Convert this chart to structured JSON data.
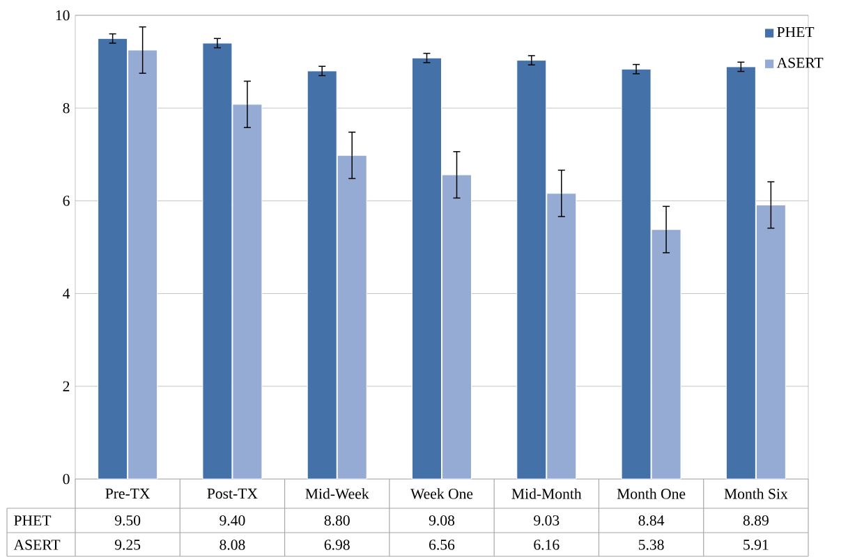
{
  "chart_data": {
    "type": "bar",
    "categories": [
      "Pre-TX",
      "Post-TX",
      "Mid-Week",
      "Week One",
      "Mid-Month",
      "Month One",
      "Month Six"
    ],
    "series": [
      {
        "name": "PHET",
        "color": "#4472a8",
        "values": [
          9.5,
          9.4,
          8.8,
          9.08,
          9.03,
          8.84,
          8.89
        ],
        "errors": [
          0.1,
          0.1,
          0.1,
          0.1,
          0.1,
          0.1,
          0.1
        ],
        "value_labels": [
          "9.50",
          "9.40",
          "8.80",
          "9.08",
          "9.03",
          "8.84",
          "8.89"
        ]
      },
      {
        "name": "ASERT",
        "color": "#95abd3",
        "values": [
          9.25,
          8.08,
          6.98,
          6.56,
          6.16,
          5.38,
          5.91
        ],
        "errors": [
          0.5,
          0.5,
          0.5,
          0.5,
          0.5,
          0.5,
          0.5
        ],
        "value_labels": [
          "9.25",
          "8.08",
          "6.98",
          "6.56",
          "6.16",
          "5.38",
          "5.91"
        ]
      }
    ],
    "ylim": [
      0,
      10
    ],
    "yticks": [
      0,
      2,
      4,
      6,
      8,
      10
    ],
    "grid": "y",
    "legend": "top right"
  }
}
